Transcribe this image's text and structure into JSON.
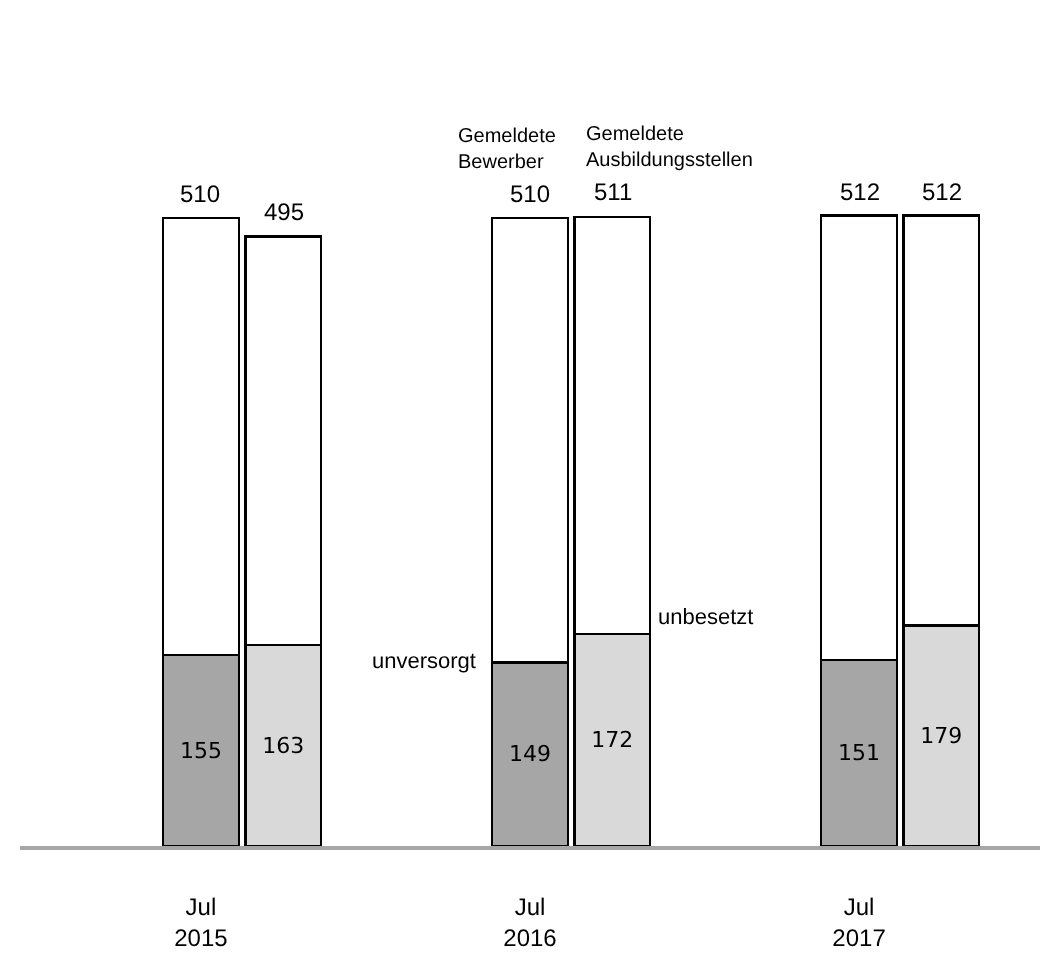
{
  "chart_data": {
    "type": "bar",
    "stacked": true,
    "categories": [
      "Jul\n2015",
      null,
      "Jul\n2016",
      null,
      "Jul\n2017",
      null
    ],
    "series": [
      {
        "name": "unversorgt",
        "color": "#a6a6a6",
        "values": [
          155,
          null,
          149,
          null,
          151,
          null
        ],
        "value_labels": [
          "155",
          null,
          "149",
          null,
          "151",
          null
        ]
      },
      {
        "name": "unbesetzt",
        "color": "#d9d9d9",
        "values": [
          null,
          163,
          null,
          172,
          null,
          179
        ],
        "value_labels": [
          null,
          "163",
          null,
          "172",
          null,
          "179"
        ]
      },
      {
        "name": "Gemeldete\nBewerber",
        "color": "#ffffff",
        "values": [
          355,
          null,
          361,
          null,
          361,
          null
        ]
      },
      {
        "name": "Gemeldete\nAusbildungsstellen",
        "color": "#ffffff",
        "values": [
          null,
          332,
          null,
          339,
          null,
          333
        ]
      }
    ],
    "totals": [
      "510",
      "495",
      "510",
      "511",
      "512",
      "512"
    ]
  }
}
